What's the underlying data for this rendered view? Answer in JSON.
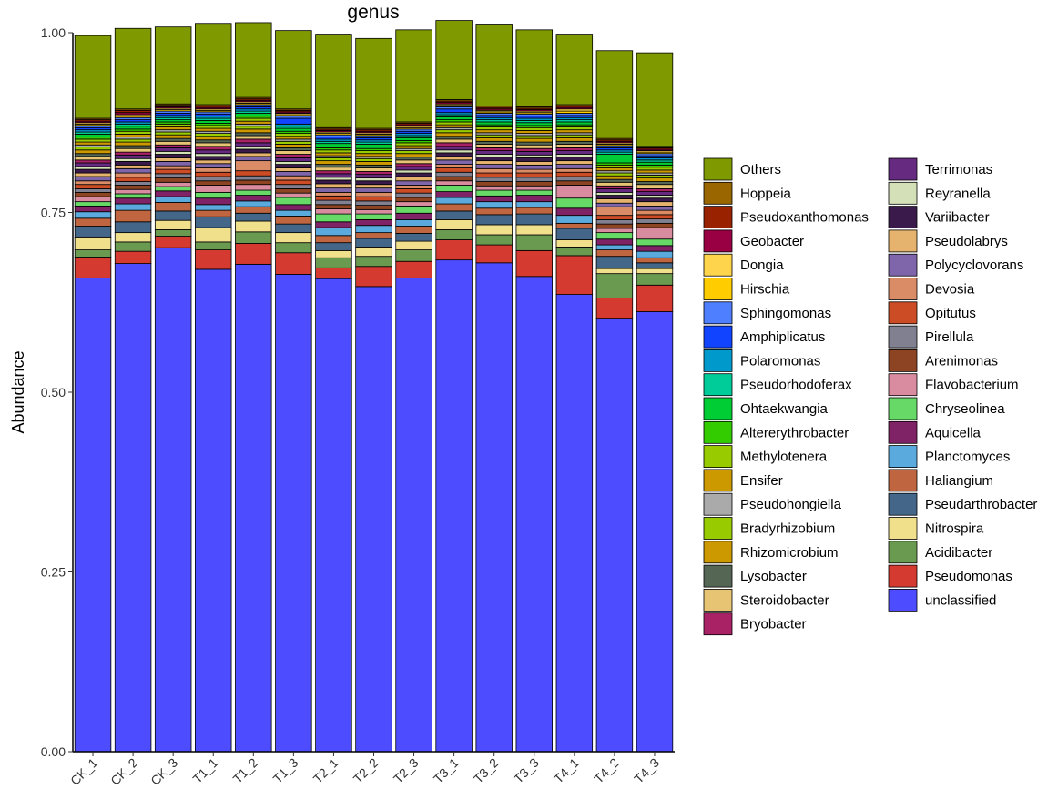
{
  "chart_data": {
    "type": "bar",
    "stacked": true,
    "title": "genus",
    "ylabel": "Abundance",
    "xlabel": "",
    "ylim": [
      0,
      1
    ],
    "yticks": [
      "0.00",
      "0.25",
      "0.50",
      "0.75",
      "1.00"
    ],
    "yticks_values": [
      0,
      0.25,
      0.5,
      0.75,
      1.0
    ],
    "legend_position": "right",
    "categories": [
      "CK_1",
      "CK_2",
      "CK_3",
      "T1_1",
      "T1_2",
      "T1_3",
      "T2_1",
      "T2_2",
      "T2_3",
      "T3_1",
      "T3_2",
      "T3_3",
      "T4_1",
      "T4_2",
      "T4_3"
    ],
    "series_order_bottom_to_top": [
      "unclassified",
      "Pseudomonas",
      "Acidibacter",
      "Nitrospira",
      "Pseudarthrobacter",
      "Haliangium",
      "Planctomyces",
      "Aquicella",
      "Chryseolinea",
      "Flavobacterium",
      "Arenimonas",
      "Pirellula",
      "Opitutus",
      "Devosia",
      "Polycyclovorans",
      "Pseudolabrys",
      "Variibacter",
      "Reyranella",
      "Terrimonas",
      "Bryobacter",
      "Steroidobacter",
      "Lysobacter",
      "Rhizomicrobium",
      "Bradyrhizobium",
      "Pseudohongiella",
      "Ensifer",
      "Methylotenera",
      "Altererythrobacter",
      "Ohtaekwangia",
      "Pseudorhodoferax",
      "Polaromonas",
      "Amphiplicatus",
      "Sphingomonas",
      "Hirschia",
      "Dongia",
      "Geobacter",
      "Pseudoxanthomonas",
      "Hoppeia",
      "Others"
    ],
    "legend": {
      "column1": [
        "Others",
        "Hoppeia",
        "Pseudoxanthomonas",
        "Geobacter",
        "Dongia",
        "Hirschia",
        "Sphingomonas",
        "Amphiplicatus",
        "Polaromonas",
        "Pseudorhodoferax",
        "Ohtaekwangia",
        "Altererythrobacter",
        "Methylotenera",
        "Ensifer",
        "Pseudohongiella",
        "Bradyrhizobium",
        "Rhizomicrobium",
        "Lysobacter",
        "Steroidobacter",
        "Bryobacter"
      ],
      "column2": [
        "Terrimonas",
        "Reyranella",
        "Variibacter",
        "Pseudolabrys",
        "Polycyclovorans",
        "Devosia",
        "Opitutus",
        "Pirellula",
        "Arenimonas",
        "Flavobacterium",
        "Chryseolinea",
        "Aquicella",
        "Planctomyces",
        "Haliangium",
        "Pseudarthrobacter",
        "Nitrospira",
        "Acidibacter",
        "Pseudomonas",
        "unclassified"
      ]
    },
    "colors": {
      "Others": "#7f9900",
      "Hoppeia": "#996600",
      "Pseudoxanthomonas": "#992200",
      "Geobacter": "#990044",
      "Dongia": "#ffd44d",
      "Hirschia": "#ffcc00",
      "Sphingomonas": "#4d7fff",
      "Amphiplicatus": "#1144ff",
      "Polaromonas": "#0099cc",
      "Pseudorhodoferax": "#00cc99",
      "Ohtaekwangia": "#00cc33",
      "Altererythrobacter": "#33cc00",
      "Methylotenera": "#99cc00",
      "Ensifer": "#cc9900",
      "Pseudohongiella": "#aaaaaa",
      "Bradyrhizobium": "#99cc00",
      "Rhizomicrobium": "#cc9900",
      "Lysobacter": "#556655",
      "Steroidobacter": "#e6c473",
      "Bryobacter": "#aa2266",
      "Terrimonas": "#662a80",
      "Reyranella": "#d4e0b8",
      "Variibacter": "#3a1a4a",
      "Pseudolabrys": "#e6b36e",
      "Polycyclovorans": "#7f66aa",
      "Devosia": "#d98c66",
      "Opitutus": "#cc4c26",
      "Pirellula": "#808090",
      "Arenimonas": "#8c4422",
      "Flavobacterium": "#d98ca0",
      "Chryseolinea": "#66d966",
      "Aquicella": "#7f2266",
      "Planctomyces": "#5aaadd",
      "Haliangium": "#bf6640",
      "Pseudarthrobacter": "#446688",
      "Nitrospira": "#f0e08c",
      "Acidibacter": "#6a9950",
      "Pseudomonas": "#d43a30",
      "unclassified": "#4d4dff"
    },
    "series": [
      {
        "name": "unclassified",
        "values": [
          0.659,
          0.679,
          0.701,
          0.671,
          0.678,
          0.664,
          0.658,
          0.647,
          0.659,
          0.684,
          0.68,
          0.661,
          0.636,
          0.603,
          0.612
        ]
      },
      {
        "name": "Pseudomonas",
        "values": [
          0.029,
          0.017,
          0.016,
          0.027,
          0.029,
          0.03,
          0.015,
          0.028,
          0.023,
          0.028,
          0.025,
          0.036,
          0.054,
          0.028,
          0.037
        ]
      },
      {
        "name": "Acidibacter",
        "values": [
          0.01,
          0.013,
          0.009,
          0.011,
          0.016,
          0.014,
          0.014,
          0.014,
          0.016,
          0.014,
          0.014,
          0.022,
          0.012,
          0.034,
          0.016
        ]
      },
      {
        "name": "Nitrospira",
        "values": [
          0.018,
          0.013,
          0.013,
          0.02,
          0.015,
          0.014,
          0.01,
          0.013,
          0.012,
          0.014,
          0.014,
          0.014,
          0.01,
          0.007,
          0.007
        ]
      },
      {
        "name": "Pseudarthrobacter",
        "values": [
          0.015,
          0.015,
          0.013,
          0.015,
          0.011,
          0.012,
          0.011,
          0.012,
          0.011,
          0.012,
          0.014,
          0.015,
          0.016,
          0.017,
          0.008
        ]
      },
      {
        "name": "Haliangium",
        "values": [
          0.011,
          0.016,
          0.012,
          0.009,
          0.009,
          0.011,
          0.01,
          0.008,
          0.01,
          0.01,
          0.009,
          0.009,
          0.007,
          0.009,
          0.007
        ]
      },
      {
        "name": "Planctomyces",
        "values": [
          0.009,
          0.009,
          0.008,
          0.008,
          0.008,
          0.008,
          0.011,
          0.01,
          0.009,
          0.009,
          0.009,
          0.008,
          0.011,
          0.007,
          0.009
        ]
      },
      {
        "name": "Aquicella",
        "values": [
          0.008,
          0.008,
          0.008,
          0.009,
          0.008,
          0.008,
          0.008,
          0.008,
          0.009,
          0.008,
          0.008,
          0.009,
          0.01,
          0.008,
          0.008
        ]
      },
      {
        "name": "Chryseolinea",
        "values": [
          0.006,
          0.006,
          0.006,
          0.008,
          0.007,
          0.01,
          0.011,
          0.008,
          0.01,
          0.009,
          0.008,
          0.007,
          0.014,
          0.009,
          0.009
        ]
      },
      {
        "name": "Flavobacterium",
        "values": [
          0.007,
          0.006,
          0.006,
          0.01,
          0.008,
          0.006,
          0.007,
          0.006,
          0.006,
          0.006,
          0.006,
          0.006,
          0.018,
          0.006,
          0.016
        ]
      },
      {
        "name": "Arenimonas",
        "values": [
          0.006,
          0.006,
          0.006,
          0.006,
          0.006,
          0.006,
          0.006,
          0.006,
          0.006,
          0.006,
          0.006,
          0.006,
          0.006,
          0.006,
          0.006
        ]
      },
      {
        "name": "Pirellula",
        "values": [
          0.005,
          0.005,
          0.006,
          0.006,
          0.006,
          0.006,
          0.006,
          0.006,
          0.006,
          0.006,
          0.006,
          0.006,
          0.006,
          0.006,
          0.006
        ]
      },
      {
        "name": "Opitutus",
        "values": [
          0.006,
          0.006,
          0.006,
          0.006,
          0.007,
          0.006,
          0.006,
          0.006,
          0.006,
          0.006,
          0.006,
          0.006,
          0.006,
          0.006,
          0.006
        ]
      },
      {
        "name": "Devosia",
        "values": [
          0.005,
          0.006,
          0.005,
          0.006,
          0.014,
          0.006,
          0.005,
          0.006,
          0.005,
          0.005,
          0.006,
          0.005,
          0.005,
          0.012,
          0.006
        ]
      },
      {
        "name": "Polycyclovorans",
        "values": [
          0.006,
          0.006,
          0.006,
          0.006,
          0.006,
          0.006,
          0.006,
          0.006,
          0.006,
          0.006,
          0.006,
          0.006,
          0.006,
          0.005,
          0.006
        ]
      },
      {
        "name": "Pseudolabrys",
        "values": [
          0.005,
          0.005,
          0.005,
          0.005,
          0.005,
          0.005,
          0.006,
          0.005,
          0.006,
          0.005,
          0.005,
          0.005,
          0.005,
          0.006,
          0.006
        ]
      },
      {
        "name": "Variibacter",
        "values": [
          0.005,
          0.005,
          0.005,
          0.005,
          0.005,
          0.005,
          0.005,
          0.005,
          0.005,
          0.005,
          0.005,
          0.005,
          0.005,
          0.005,
          0.005
        ]
      },
      {
        "name": "Reyranella",
        "values": [
          0.004,
          0.004,
          0.004,
          0.004,
          0.004,
          0.004,
          0.004,
          0.004,
          0.004,
          0.004,
          0.004,
          0.004,
          0.004,
          0.004,
          0.004
        ]
      },
      {
        "name": "Terrimonas",
        "values": [
          0.005,
          0.005,
          0.005,
          0.005,
          0.005,
          0.005,
          0.005,
          0.005,
          0.005,
          0.005,
          0.005,
          0.005,
          0.005,
          0.005,
          0.005
        ]
      },
      {
        "name": "Bryobacter",
        "values": [
          0.004,
          0.004,
          0.004,
          0.005,
          0.005,
          0.005,
          0.004,
          0.004,
          0.004,
          0.005,
          0.004,
          0.004,
          0.004,
          0.004,
          0.004
        ]
      },
      {
        "name": "Steroidobacter",
        "values": [
          0.005,
          0.005,
          0.005,
          0.005,
          0.005,
          0.005,
          0.005,
          0.005,
          0.005,
          0.005,
          0.005,
          0.005,
          0.005,
          0.005,
          0.006
        ]
      },
      {
        "name": "Lysobacter",
        "values": [
          0.004,
          0.004,
          0.004,
          0.004,
          0.004,
          0.004,
          0.004,
          0.004,
          0.004,
          0.004,
          0.004,
          0.004,
          0.004,
          0.004,
          0.004
        ]
      },
      {
        "name": "Rhizomicrobium",
        "values": [
          0.005,
          0.005,
          0.005,
          0.005,
          0.005,
          0.005,
          0.005,
          0.005,
          0.005,
          0.005,
          0.005,
          0.005,
          0.005,
          0.005,
          0.005
        ]
      },
      {
        "name": "Bradyrhizobium",
        "values": [
          0.004,
          0.004,
          0.004,
          0.004,
          0.004,
          0.004,
          0.004,
          0.004,
          0.004,
          0.004,
          0.004,
          0.004,
          0.004,
          0.004,
          0.004
        ]
      },
      {
        "name": "Pseudohongiella",
        "values": [
          0.003,
          0.003,
          0.003,
          0.003,
          0.003,
          0.003,
          0.003,
          0.003,
          0.003,
          0.003,
          0.003,
          0.003,
          0.003,
          0.003,
          0.003
        ]
      },
      {
        "name": "Ensifer",
        "values": [
          0.004,
          0.004,
          0.004,
          0.004,
          0.004,
          0.004,
          0.004,
          0.004,
          0.004,
          0.004,
          0.004,
          0.004,
          0.004,
          0.004,
          0.004
        ]
      },
      {
        "name": "Methylotenera",
        "values": [
          0.004,
          0.004,
          0.004,
          0.004,
          0.004,
          0.004,
          0.004,
          0.004,
          0.004,
          0.004,
          0.004,
          0.004,
          0.004,
          0.004,
          0.004
        ]
      },
      {
        "name": "Altererythrobacter",
        "values": [
          0.003,
          0.003,
          0.003,
          0.003,
          0.003,
          0.003,
          0.003,
          0.003,
          0.003,
          0.003,
          0.003,
          0.003,
          0.003,
          0.003,
          0.003
        ]
      },
      {
        "name": "Ohtaekwangia",
        "values": [
          0.004,
          0.004,
          0.003,
          0.004,
          0.004,
          0.004,
          0.006,
          0.006,
          0.004,
          0.004,
          0.004,
          0.004,
          0.004,
          0.012,
          0.004
        ]
      },
      {
        "name": "Pseudorhodoferax",
        "values": [
          0.003,
          0.003,
          0.003,
          0.003,
          0.003,
          0.003,
          0.003,
          0.003,
          0.003,
          0.003,
          0.003,
          0.003,
          0.003,
          0.003,
          0.003
        ]
      },
      {
        "name": "Polaromonas",
        "values": [
          0.003,
          0.003,
          0.003,
          0.003,
          0.003,
          0.003,
          0.003,
          0.003,
          0.003,
          0.003,
          0.003,
          0.003,
          0.003,
          0.003,
          0.003
        ]
      },
      {
        "name": "Amphiplicatus",
        "values": [
          0.003,
          0.003,
          0.003,
          0.003,
          0.003,
          0.008,
          0.003,
          0.003,
          0.003,
          0.005,
          0.003,
          0.003,
          0.003,
          0.003,
          0.003
        ]
      },
      {
        "name": "Sphingomonas",
        "values": [
          0.003,
          0.003,
          0.003,
          0.003,
          0.003,
          0.003,
          0.003,
          0.003,
          0.003,
          0.003,
          0.003,
          0.003,
          0.003,
          0.003,
          0.003
        ]
      },
      {
        "name": "Hirschia",
        "values": [
          0.002,
          0.002,
          0.002,
          0.002,
          0.002,
          0.002,
          0.002,
          0.002,
          0.002,
          0.002,
          0.002,
          0.002,
          0.003,
          0.002,
          0.002
        ]
      },
      {
        "name": "Dongia",
        "values": [
          0.002,
          0.002,
          0.002,
          0.002,
          0.002,
          0.002,
          0.002,
          0.002,
          0.002,
          0.002,
          0.002,
          0.002,
          0.003,
          0.002,
          0.002
        ]
      },
      {
        "name": "Geobacter",
        "values": [
          0.002,
          0.003,
          0.002,
          0.002,
          0.002,
          0.002,
          0.002,
          0.002,
          0.002,
          0.002,
          0.002,
          0.002,
          0.002,
          0.002,
          0.002
        ]
      },
      {
        "name": "Pseudoxanthomonas",
        "values": [
          0.002,
          0.003,
          0.002,
          0.002,
          0.002,
          0.002,
          0.002,
          0.002,
          0.002,
          0.002,
          0.002,
          0.002,
          0.002,
          0.002,
          0.002
        ]
      },
      {
        "name": "Hoppeia",
        "values": [
          0.002,
          0.002,
          0.002,
          0.002,
          0.002,
          0.002,
          0.002,
          0.002,
          0.002,
          0.002,
          0.002,
          0.002,
          0.002,
          0.002,
          0.002
        ]
      },
      {
        "name": "Others",
        "values": [
          0.115,
          0.112,
          0.107,
          0.113,
          0.104,
          0.109,
          0.13,
          0.125,
          0.128,
          0.11,
          0.114,
          0.107,
          0.098,
          0.122,
          0.13
        ]
      }
    ]
  }
}
